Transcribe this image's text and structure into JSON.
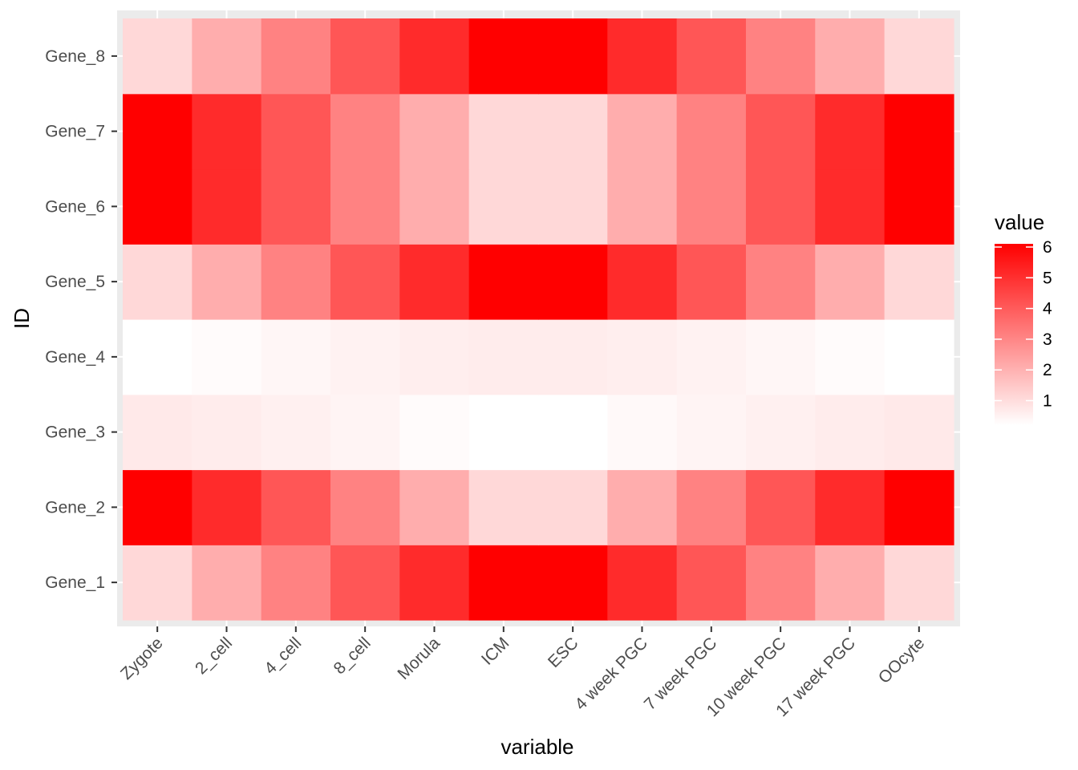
{
  "chart_data": {
    "type": "heatmap",
    "xlabel": "variable",
    "ylabel": "ID",
    "x_categories": [
      "Zygote",
      "2_cell",
      "4_cell",
      "8_cell",
      "Morula",
      "ICM",
      "ESC",
      "4 week PGC",
      "7 week PGC",
      "10 week PGC",
      "17 week PGC",
      "OOcyte"
    ],
    "y_categories": [
      "Gene_1",
      "Gene_2",
      "Gene_3",
      "Gene_4",
      "Gene_5",
      "Gene_6",
      "Gene_7",
      "Gene_8"
    ],
    "values": [
      [
        1.0,
        2.0,
        3.0,
        4.0,
        5.0,
        6.0,
        6.0,
        5.0,
        4.0,
        3.0,
        2.0,
        1.0
      ],
      [
        6.0,
        5.0,
        4.0,
        3.0,
        2.0,
        1.0,
        1.0,
        2.0,
        3.0,
        4.0,
        5.0,
        6.0
      ],
      [
        0.6,
        0.55,
        0.45,
        0.35,
        0.2,
        0.1,
        0.1,
        0.25,
        0.35,
        0.45,
        0.55,
        0.6
      ],
      [
        0.1,
        0.2,
        0.3,
        0.4,
        0.5,
        0.55,
        0.55,
        0.5,
        0.4,
        0.3,
        0.2,
        0.1
      ],
      [
        1.0,
        2.0,
        3.0,
        4.0,
        5.0,
        6.0,
        6.0,
        5.0,
        4.0,
        3.0,
        2.0,
        1.0
      ],
      [
        6.0,
        5.0,
        4.0,
        3.0,
        2.0,
        1.0,
        1.0,
        2.0,
        3.0,
        4.0,
        5.0,
        6.0
      ],
      [
        6.0,
        5.0,
        4.0,
        3.0,
        2.0,
        1.0,
        1.0,
        2.0,
        3.0,
        4.0,
        5.0,
        6.0
      ],
      [
        1.0,
        2.0,
        3.0,
        4.0,
        5.0,
        6.0,
        6.0,
        5.0,
        4.0,
        3.0,
        2.0,
        1.0
      ]
    ],
    "color_scale": {
      "low": "#ffffff",
      "high": "#ff0000",
      "min": 0.1,
      "max": 6
    },
    "legend": {
      "title": "value",
      "ticks": [
        1,
        2,
        3,
        4,
        5,
        6
      ],
      "tick_labels": [
        "1",
        "2",
        "3",
        "4",
        "5",
        "6"
      ],
      "position": "right"
    },
    "panel_background": "#ebebeb",
    "grid": true
  }
}
